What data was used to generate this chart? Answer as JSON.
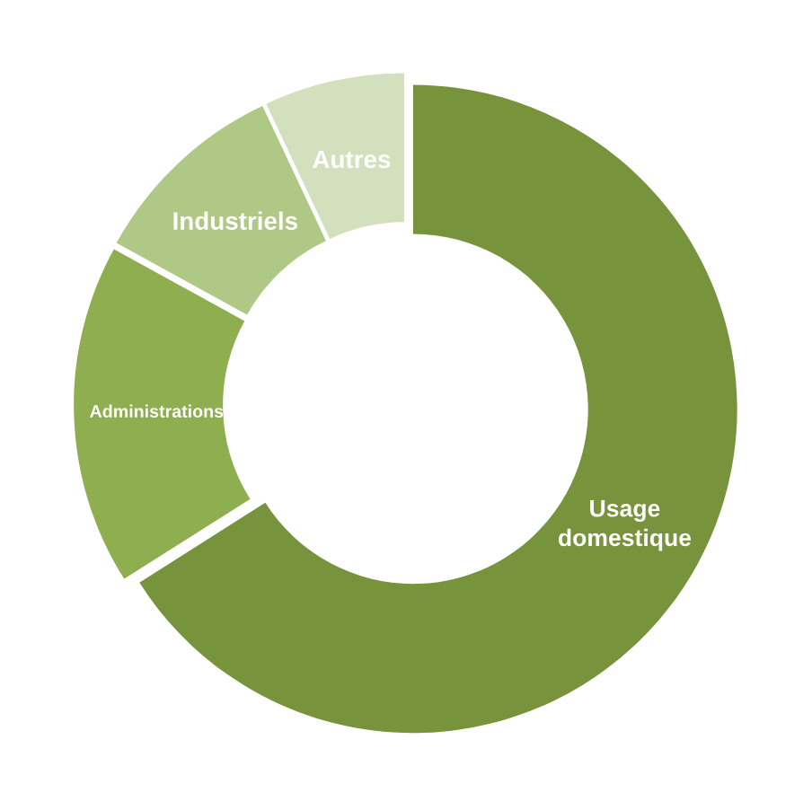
{
  "chart_data": {
    "type": "donut",
    "categories": [
      "Usage domestique",
      "Administrations",
      "Industriels",
      "Autres"
    ],
    "values": [
      66,
      17,
      10,
      7
    ],
    "colors": [
      "#77933c",
      "#8fae4f",
      "#b0c886",
      "#d3e0bd"
    ],
    "legend": false
  }
}
